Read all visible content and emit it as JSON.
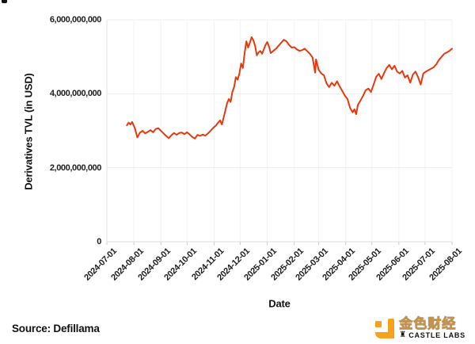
{
  "source_note": "Source: Defillama",
  "branding": {
    "brand_name_cn": "金色财经",
    "brand_name_en": "CASTLE LABS",
    "brand_color": "#F6A21E",
    "icons": [
      "jinse-finance-logo-icon",
      "castle-icon"
    ]
  },
  "chart_data": {
    "type": "line",
    "title": "",
    "xlabel": "Date",
    "ylabel": "Derivatives TVL (in USD)",
    "legend": "none",
    "grid": true,
    "line_color": "#E8380D",
    "grid_color": "#ededed",
    "tick_color": "#c9c9c9",
    "ylim": [
      0,
      6000000000
    ],
    "y_ticks": [
      0,
      2000000000,
      4000000000,
      6000000000
    ],
    "y_tick_labels": [
      "0",
      "2,000,000,000",
      "4,000,000,000",
      "6,000,000,000"
    ],
    "x_ticks": [
      "2024-07-01",
      "2024-08-01",
      "2024-09-01",
      "2024-10-01",
      "2024-11-01",
      "2024-12-01",
      "2025-01-01",
      "2025-02-01",
      "2025-03-01",
      "2025-04-01",
      "2025-05-01",
      "2025-06-01",
      "2025-07-01",
      "2025-08-01"
    ],
    "series": [
      {
        "name": "Derivatives TVL",
        "points": [
          [
            "2024-07-24",
            3150000000
          ],
          [
            "2024-07-26",
            3220000000
          ],
          [
            "2024-07-28",
            3170000000
          ],
          [
            "2024-07-30",
            3240000000
          ],
          [
            "2024-08-02",
            3080000000
          ],
          [
            "2024-08-05",
            2820000000
          ],
          [
            "2024-08-08",
            2950000000
          ],
          [
            "2024-08-11",
            3000000000
          ],
          [
            "2024-08-14",
            2930000000
          ],
          [
            "2024-08-17",
            2970000000
          ],
          [
            "2024-08-20",
            3020000000
          ],
          [
            "2024-08-23",
            2960000000
          ],
          [
            "2024-08-26",
            3050000000
          ],
          [
            "2024-08-29",
            3070000000
          ],
          [
            "2024-09-01",
            3000000000
          ],
          [
            "2024-09-04",
            2930000000
          ],
          [
            "2024-09-07",
            2860000000
          ],
          [
            "2024-09-10",
            2800000000
          ],
          [
            "2024-09-13",
            2880000000
          ],
          [
            "2024-09-16",
            2940000000
          ],
          [
            "2024-09-19",
            2890000000
          ],
          [
            "2024-09-22",
            2940000000
          ],
          [
            "2024-09-25",
            2950000000
          ],
          [
            "2024-09-28",
            2910000000
          ],
          [
            "2024-10-01",
            2960000000
          ],
          [
            "2024-10-04",
            2900000000
          ],
          [
            "2024-10-07",
            2830000000
          ],
          [
            "2024-10-10",
            2790000000
          ],
          [
            "2024-10-13",
            2890000000
          ],
          [
            "2024-10-16",
            2860000000
          ],
          [
            "2024-10-19",
            2900000000
          ],
          [
            "2024-10-22",
            2870000000
          ],
          [
            "2024-10-25",
            2930000000
          ],
          [
            "2024-10-28",
            3000000000
          ],
          [
            "2024-10-31",
            3080000000
          ],
          [
            "2024-11-03",
            3140000000
          ],
          [
            "2024-11-06",
            3230000000
          ],
          [
            "2024-11-08",
            3280000000
          ],
          [
            "2024-11-10",
            3170000000
          ],
          [
            "2024-11-12",
            3360000000
          ],
          [
            "2024-11-14",
            3550000000
          ],
          [
            "2024-11-16",
            3750000000
          ],
          [
            "2024-11-18",
            3860000000
          ],
          [
            "2024-11-20",
            3780000000
          ],
          [
            "2024-11-22",
            4050000000
          ],
          [
            "2024-11-24",
            4180000000
          ],
          [
            "2024-11-26",
            4450000000
          ],
          [
            "2024-11-28",
            4380000000
          ],
          [
            "2024-11-30",
            4550000000
          ],
          [
            "2024-12-02",
            4820000000
          ],
          [
            "2024-12-04",
            4700000000
          ],
          [
            "2024-12-06",
            5100000000
          ],
          [
            "2024-12-08",
            5420000000
          ],
          [
            "2024-12-10",
            5250000000
          ],
          [
            "2024-12-12",
            5380000000
          ],
          [
            "2024-12-14",
            5530000000
          ],
          [
            "2024-12-16",
            5450000000
          ],
          [
            "2024-12-18",
            5300000000
          ],
          [
            "2024-12-20",
            5040000000
          ],
          [
            "2024-12-22",
            5120000000
          ],
          [
            "2024-12-24",
            5160000000
          ],
          [
            "2024-12-26",
            5080000000
          ],
          [
            "2024-12-28",
            5200000000
          ],
          [
            "2024-12-30",
            5320000000
          ],
          [
            "2025-01-01",
            5400000000
          ],
          [
            "2025-01-03",
            5280000000
          ],
          [
            "2025-01-05",
            5100000000
          ],
          [
            "2025-01-08",
            5160000000
          ],
          [
            "2025-01-11",
            5220000000
          ],
          [
            "2025-01-14",
            5300000000
          ],
          [
            "2025-01-17",
            5380000000
          ],
          [
            "2025-01-20",
            5460000000
          ],
          [
            "2025-01-23",
            5420000000
          ],
          [
            "2025-01-26",
            5320000000
          ],
          [
            "2025-01-29",
            5250000000
          ],
          [
            "2025-02-01",
            5260000000
          ],
          [
            "2025-02-04",
            5200000000
          ],
          [
            "2025-02-07",
            5160000000
          ],
          [
            "2025-02-10",
            5180000000
          ],
          [
            "2025-02-13",
            5220000000
          ],
          [
            "2025-02-16",
            5150000000
          ],
          [
            "2025-02-19",
            5080000000
          ],
          [
            "2025-02-22",
            4980000000
          ],
          [
            "2025-02-25",
            4570000000
          ],
          [
            "2025-02-26",
            4930000000
          ],
          [
            "2025-03-01",
            4650000000
          ],
          [
            "2025-03-04",
            4550000000
          ],
          [
            "2025-03-07",
            4500000000
          ],
          [
            "2025-03-10",
            4280000000
          ],
          [
            "2025-03-13",
            4180000000
          ],
          [
            "2025-03-16",
            4300000000
          ],
          [
            "2025-03-19",
            4220000000
          ],
          [
            "2025-03-22",
            4340000000
          ],
          [
            "2025-03-25",
            4200000000
          ],
          [
            "2025-03-28",
            4080000000
          ],
          [
            "2025-03-31",
            3950000000
          ],
          [
            "2025-04-03",
            3860000000
          ],
          [
            "2025-04-06",
            3620000000
          ],
          [
            "2025-04-09",
            3500000000
          ],
          [
            "2025-04-11",
            3580000000
          ],
          [
            "2025-04-13",
            3450000000
          ],
          [
            "2025-04-15",
            3700000000
          ],
          [
            "2025-04-18",
            3820000000
          ],
          [
            "2025-04-21",
            3950000000
          ],
          [
            "2025-04-24",
            4100000000
          ],
          [
            "2025-04-27",
            4140000000
          ],
          [
            "2025-04-30",
            4050000000
          ],
          [
            "2025-05-03",
            4250000000
          ],
          [
            "2025-05-06",
            4460000000
          ],
          [
            "2025-05-09",
            4540000000
          ],
          [
            "2025-05-12",
            4400000000
          ],
          [
            "2025-05-15",
            4560000000
          ],
          [
            "2025-05-18",
            4700000000
          ],
          [
            "2025-05-21",
            4780000000
          ],
          [
            "2025-05-24",
            4660000000
          ],
          [
            "2025-05-27",
            4760000000
          ],
          [
            "2025-05-30",
            4600000000
          ],
          [
            "2025-06-02",
            4550000000
          ],
          [
            "2025-06-05",
            4620000000
          ],
          [
            "2025-06-08",
            4440000000
          ],
          [
            "2025-06-11",
            4500000000
          ],
          [
            "2025-06-14",
            4300000000
          ],
          [
            "2025-06-17",
            4520000000
          ],
          [
            "2025-06-20",
            4600000000
          ],
          [
            "2025-06-23",
            4450000000
          ],
          [
            "2025-06-26",
            4250000000
          ],
          [
            "2025-06-29",
            4550000000
          ],
          [
            "2025-07-02",
            4600000000
          ],
          [
            "2025-07-05",
            4640000000
          ],
          [
            "2025-07-08",
            4680000000
          ],
          [
            "2025-07-11",
            4720000000
          ],
          [
            "2025-07-14",
            4800000000
          ],
          [
            "2025-07-17",
            4920000000
          ],
          [
            "2025-07-20",
            5000000000
          ],
          [
            "2025-07-23",
            5080000000
          ],
          [
            "2025-07-26",
            5120000000
          ],
          [
            "2025-07-29",
            5160000000
          ],
          [
            "2025-08-01",
            5220000000
          ]
        ]
      }
    ]
  }
}
